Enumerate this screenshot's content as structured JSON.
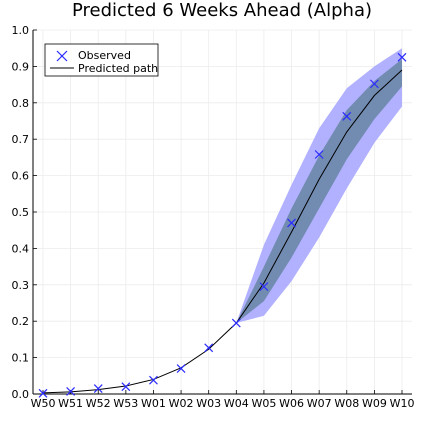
{
  "chart_data": {
    "type": "line",
    "title": "Predicted 6 Weeks Ahead (Alpha)",
    "xlabel": "",
    "ylabel": "",
    "categories": [
      "W50",
      "W51",
      "W52",
      "W53",
      "W01",
      "W02",
      "W03",
      "W04",
      "W05",
      "W06",
      "W07",
      "W08",
      "W09",
      "W10"
    ],
    "ylim": [
      0,
      1.0
    ],
    "yticks": [
      0.0,
      0.1,
      0.2,
      0.3,
      0.4,
      0.5,
      0.6,
      0.7,
      0.8,
      0.9,
      1.0
    ],
    "grid": true,
    "legend_position": "top-left",
    "series": [
      {
        "name": "Observed",
        "kind": "scatter",
        "marker": "x",
        "color": "#2a2aff",
        "values": [
          0.002,
          0.007,
          0.015,
          0.02,
          0.038,
          0.07,
          0.127,
          0.195,
          0.295,
          0.47,
          0.658,
          0.763,
          0.852,
          0.925
        ]
      },
      {
        "name": "Predicted path",
        "kind": "line",
        "color": "#000000",
        "values": [
          0.003,
          0.006,
          0.012,
          0.022,
          0.04,
          0.072,
          0.123,
          0.195,
          0.305,
          0.445,
          0.59,
          0.72,
          0.82,
          0.89
        ]
      }
    ],
    "bands": [
      {
        "label": "outer",
        "color": "#a8a8ff",
        "x_start_index": 7,
        "lower": [
          0.195,
          0.215,
          0.31,
          0.43,
          0.565,
          0.69,
          0.79
        ],
        "upper": [
          0.195,
          0.41,
          0.575,
          0.73,
          0.84,
          0.9,
          0.95
        ]
      },
      {
        "label": "inner",
        "color": "#6c87a8",
        "x_start_index": 7,
        "lower": [
          0.195,
          0.255,
          0.375,
          0.51,
          0.645,
          0.755,
          0.845
        ],
        "upper": [
          0.195,
          0.35,
          0.51,
          0.655,
          0.78,
          0.86,
          0.92
        ]
      }
    ]
  }
}
